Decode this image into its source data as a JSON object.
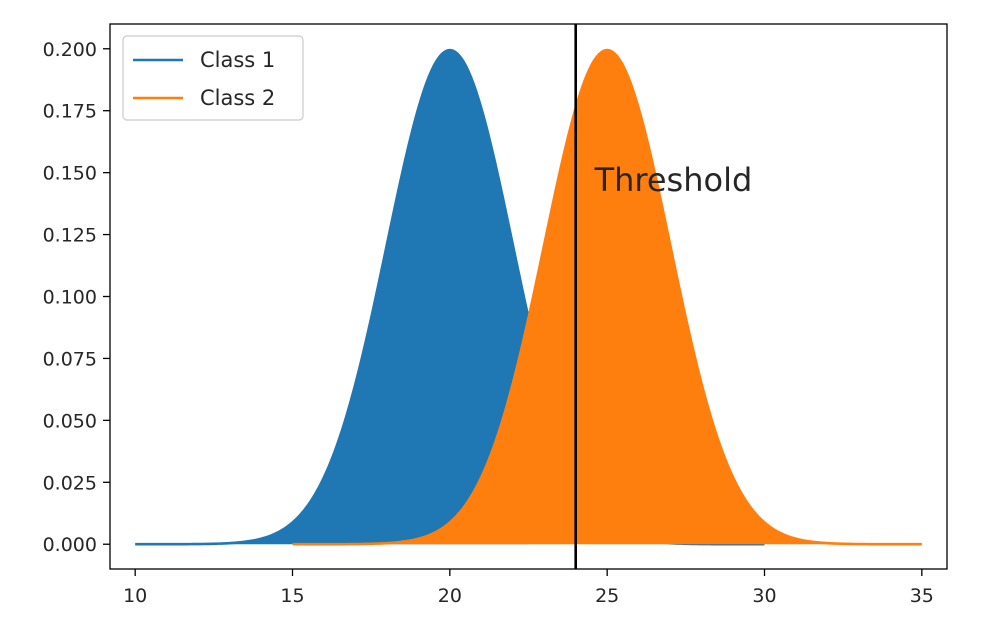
{
  "chart_data": {
    "type": "area",
    "title": "",
    "xlabel": "",
    "ylabel": "",
    "xlim": [
      9.2,
      35.8
    ],
    "ylim": [
      -0.01,
      0.21
    ],
    "x_ticks": [
      {
        "value": 10,
        "label": "10"
      },
      {
        "value": 15,
        "label": "15"
      },
      {
        "value": 20,
        "label": "20"
      },
      {
        "value": 25,
        "label": "25"
      },
      {
        "value": 30,
        "label": "30"
      },
      {
        "value": 35,
        "label": "35"
      }
    ],
    "y_ticks": [
      {
        "value": 0.0,
        "label": "0.000"
      },
      {
        "value": 0.025,
        "label": "0.025"
      },
      {
        "value": 0.05,
        "label": "0.050"
      },
      {
        "value": 0.075,
        "label": "0.075"
      },
      {
        "value": 0.1,
        "label": "0.100"
      },
      {
        "value": 0.125,
        "label": "0.125"
      },
      {
        "value": 0.15,
        "label": "0.150"
      },
      {
        "value": 0.175,
        "label": "0.175"
      },
      {
        "value": 0.2,
        "label": "0.200"
      }
    ],
    "grid": false,
    "legend_position": "top-left",
    "series": [
      {
        "name": "Class 1",
        "color": "#1f77b4",
        "distribution": "normal",
        "mean": 20,
        "std": 2,
        "x_range": [
          10,
          30
        ],
        "filled_range": [
          10,
          22.5
        ]
      },
      {
        "name": "Class 2",
        "color": "#ff7f0e",
        "distribution": "normal",
        "mean": 25,
        "std": 2,
        "x_range": [
          15,
          35
        ],
        "filled_range": [
          15,
          35
        ]
      }
    ],
    "threshold": {
      "x": 24,
      "color": "#000000"
    },
    "annotations": [
      {
        "text": "Threshold",
        "x": 24.6,
        "y": 0.147
      }
    ]
  }
}
